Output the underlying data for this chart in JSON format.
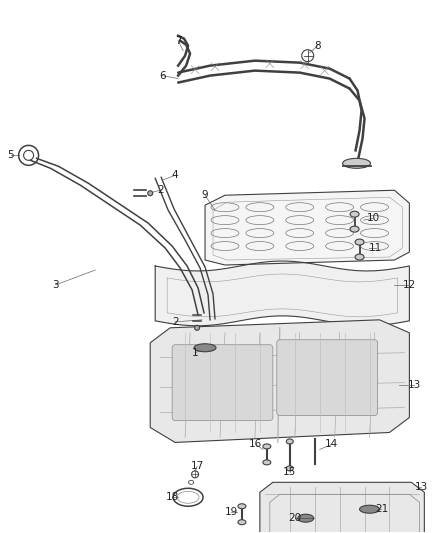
{
  "background_color": "#ffffff",
  "line_color": "#404040",
  "label_color": "#222222",
  "figsize": [
    4.38,
    5.33
  ],
  "dpi": 100
}
